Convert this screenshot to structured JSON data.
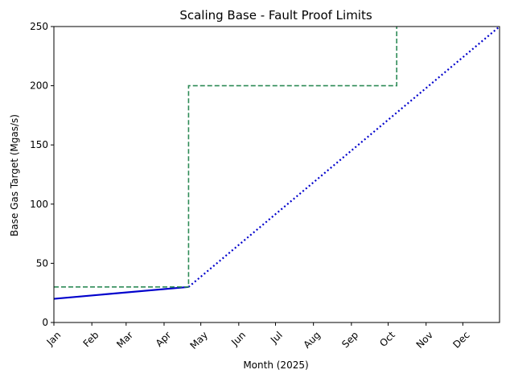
{
  "chart_data": {
    "type": "line",
    "title": "Scaling Base - Fault Proof Limits",
    "xlabel": "Month (2025)",
    "ylabel": "Base Gas Target (Mgas/s)",
    "xlim": [
      "2025-01-01",
      "2025-12-31"
    ],
    "ylim": [
      0,
      250
    ],
    "grid": false,
    "x_ticks": [
      "Jan",
      "Feb",
      "Mar",
      "Apr",
      "May",
      "Jun",
      "Jul",
      "Aug",
      "Sep",
      "Oct",
      "Nov",
      "Dec"
    ],
    "y_ticks": [
      0,
      50,
      100,
      150,
      200,
      250
    ],
    "series": [
      {
        "style": "solid",
        "color": "#0000cc",
        "points": [
          [
            "2025-01-01",
            20
          ],
          [
            "2025-04-21",
            30
          ]
        ]
      },
      {
        "style": "dotted",
        "color": "#0000cc",
        "points": [
          [
            "2025-04-21",
            30
          ],
          [
            "2025-12-31",
            250
          ]
        ]
      },
      {
        "style": "dashed-step",
        "color": "#2e8b57",
        "points": [
          [
            "2025-01-01",
            30
          ],
          [
            "2025-04-21",
            30
          ],
          [
            "2025-04-21",
            200
          ],
          [
            "2025-10-08",
            200
          ],
          [
            "2025-10-08",
            250
          ]
        ]
      }
    ]
  }
}
